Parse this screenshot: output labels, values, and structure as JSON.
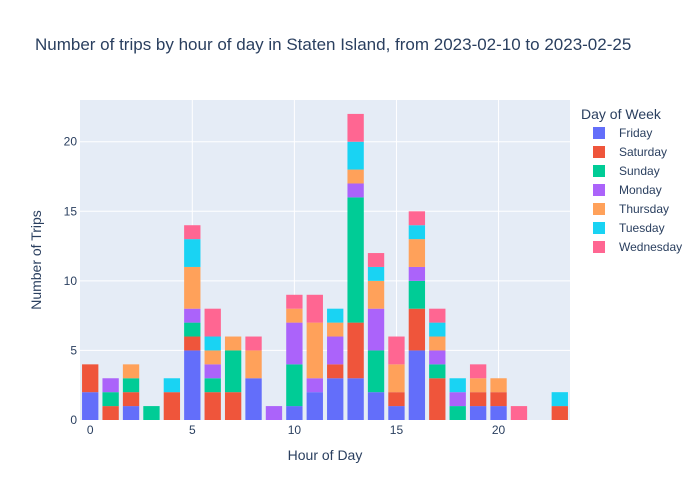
{
  "chart_data": {
    "type": "bar",
    "barmode": "stack",
    "title": "Number of trips by hour of day in Staten Island, from 2023-02-10 to 2023-02-25",
    "xlabel": "Hour of Day",
    "ylabel": "Number of Trips",
    "xlim": [
      -0.5,
      23.5
    ],
    "ylim": [
      0,
      23
    ],
    "x_ticks": [
      0,
      5,
      10,
      15,
      20
    ],
    "y_ticks": [
      0,
      5,
      10,
      15,
      20
    ],
    "grid": true,
    "legend_title": "Day of Week",
    "legend_position": "right",
    "x": [
      0,
      1,
      2,
      3,
      4,
      5,
      6,
      7,
      8,
      9,
      10,
      11,
      12,
      13,
      14,
      15,
      16,
      17,
      18,
      19,
      20,
      21,
      22,
      23
    ],
    "series": [
      {
        "name": "Friday",
        "color": "#636efa",
        "values": [
          2,
          0,
          1,
          0,
          0,
          5,
          0,
          0,
          3,
          0,
          1,
          2,
          3,
          3,
          2,
          1,
          5,
          0,
          0,
          1,
          1,
          0,
          0,
          0
        ]
      },
      {
        "name": "Saturday",
        "color": "#ef553b",
        "values": [
          2,
          1,
          1,
          0,
          2,
          1,
          2,
          2,
          0,
          0,
          0,
          0,
          1,
          4,
          0,
          1,
          3,
          3,
          0,
          1,
          1,
          0,
          0,
          1
        ]
      },
      {
        "name": "Sunday",
        "color": "#00cc96",
        "values": [
          0,
          1,
          1,
          1,
          0,
          1,
          1,
          3,
          0,
          0,
          3,
          0,
          0,
          9,
          3,
          0,
          2,
          1,
          1,
          0,
          0,
          0,
          0,
          0
        ]
      },
      {
        "name": "Monday",
        "color": "#ab63fa",
        "values": [
          0,
          1,
          0,
          0,
          0,
          1,
          1,
          0,
          0,
          1,
          3,
          1,
          2,
          1,
          3,
          0,
          1,
          1,
          1,
          0,
          0,
          0,
          0,
          0
        ]
      },
      {
        "name": "Thursday",
        "color": "#ffa15a",
        "values": [
          0,
          0,
          1,
          0,
          0,
          3,
          1,
          1,
          2,
          0,
          1,
          4,
          1,
          1,
          2,
          2,
          2,
          1,
          0,
          1,
          1,
          0,
          0,
          0
        ]
      },
      {
        "name": "Tuesday",
        "color": "#19d3f3",
        "values": [
          0,
          0,
          0,
          0,
          1,
          2,
          1,
          0,
          0,
          0,
          0,
          0,
          1,
          2,
          1,
          0,
          1,
          1,
          1,
          0,
          0,
          0,
          0,
          1
        ]
      },
      {
        "name": "Wednesday",
        "color": "#ff6692",
        "values": [
          0,
          0,
          0,
          0,
          0,
          1,
          2,
          0,
          1,
          0,
          1,
          2,
          0,
          2,
          1,
          2,
          1,
          1,
          0,
          1,
          0,
          1,
          0,
          0
        ]
      }
    ]
  }
}
